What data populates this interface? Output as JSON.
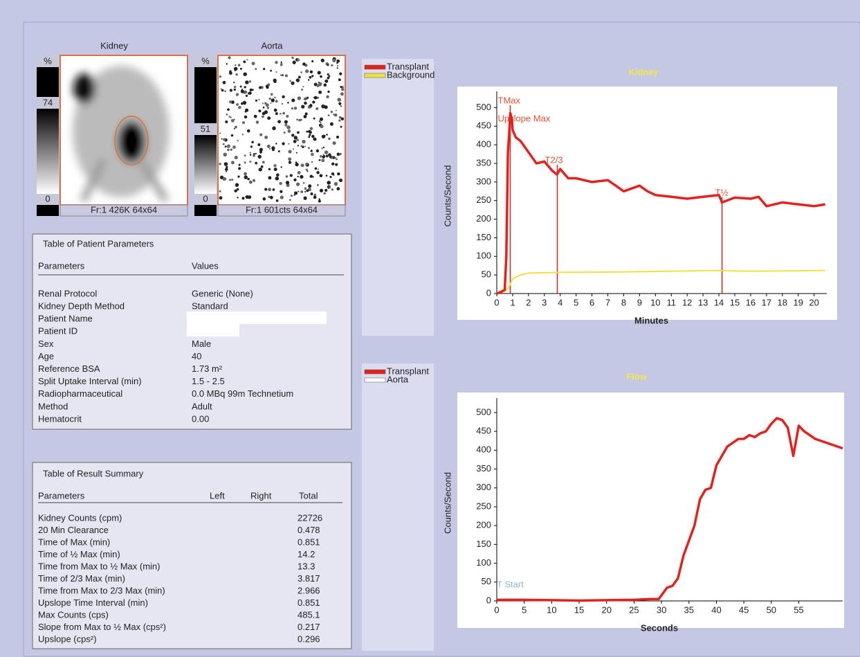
{
  "images": [
    {
      "title": "Kidney",
      "scale_top": "%",
      "scale_high": "74",
      "scale_low": "0",
      "footer": "Fr:1 426K 64x64"
    },
    {
      "title": "Aorta",
      "scale_top": "%",
      "scale_high": "51",
      "scale_low": "0",
      "footer": "Fr:1 601cts 64x64"
    }
  ],
  "patient_table": {
    "title": "Table of Patient Parameters",
    "headers": [
      "Parameters",
      "Values"
    ],
    "rows": [
      [
        "Renal Protocol",
        "Generic (None)"
      ],
      [
        "Kidney Depth Method",
        "Standard"
      ],
      [
        "Patient Name"
      ],
      [
        "Patient ID"
      ],
      [
        "Sex",
        "Male"
      ],
      [
        "Age",
        "40"
      ],
      [
        "Reference BSA",
        "1.73 m²"
      ],
      [
        "Split Uptake Interval (min)",
        "1.5 - 2.5"
      ],
      [
        "Radiopharmaceutical",
        "0.0 MBq 99m Technetium"
      ],
      [
        "Method",
        "Adult"
      ],
      [
        "Hematocrit",
        "0.00"
      ]
    ]
  },
  "result_table": {
    "title": "Table of Result Summary",
    "headers": [
      "Parameters",
      "Left",
      "Right",
      "Total"
    ],
    "rows": [
      [
        "Kidney Counts (cpm)",
        "22726"
      ],
      [
        "20 Min Clearance",
        "0.478"
      ],
      [
        "Time of Max (min)",
        "0.851"
      ],
      [
        "Time of ½ Max (min)",
        "14.2"
      ],
      [
        "Time from Max to ½ Max (min)",
        "13.3"
      ],
      [
        "Time of 2/3 Max (min)",
        "3.817"
      ],
      [
        "Time from Max to 2/3 Max (min)",
        "2.966"
      ],
      [
        "Upslope Time Interval (min)",
        "0.851"
      ],
      [
        "Max Counts (cps)",
        "485.1"
      ],
      [
        "Slope from Max to ½ Max (cps²)",
        "0.217"
      ],
      [
        "Upslope (cps²)",
        "0.296"
      ]
    ]
  },
  "chart_data": [
    {
      "type": "line",
      "title": "Kidney",
      "x_label": "Minutes",
      "y_label": "Counts/Second",
      "xlim": [
        0,
        20.8
      ],
      "ylim": [
        0,
        525
      ],
      "xticks": [
        0,
        1,
        2,
        3,
        4,
        5,
        6,
        7,
        8,
        9,
        10,
        11,
        12,
        13,
        14,
        15,
        16,
        17,
        18,
        19,
        20
      ],
      "yticks": [
        0,
        50,
        100,
        150,
        200,
        250,
        300,
        350,
        400,
        450,
        500
      ],
      "series": [
        {
          "name": "Transplant",
          "color": "#e8201c",
          "x": [
            0,
            0.3,
            0.5,
            0.6,
            0.7,
            0.8,
            0.85,
            0.95,
            1.0,
            1.2,
            1.5,
            2,
            2.5,
            3,
            3.5,
            3.8,
            4,
            4.5,
            5,
            6,
            7,
            7.5,
            8,
            9,
            9.5,
            10,
            11,
            12,
            13,
            14,
            14.2,
            15,
            16,
            16.5,
            17,
            18,
            19,
            20,
            20.7
          ],
          "values": [
            0,
            5,
            10,
            100,
            380,
            440,
            485,
            470,
            440,
            420,
            410,
            380,
            350,
            355,
            330,
            320,
            335,
            310,
            310,
            300,
            305,
            290,
            275,
            290,
            275,
            265,
            260,
            255,
            260,
            265,
            245,
            258,
            255,
            260,
            235,
            245,
            240,
            235,
            240
          ]
        },
        {
          "name": "Background",
          "color": "#f0e040",
          "x": [
            0,
            0.5,
            0.8,
            1,
            1.5,
            2,
            4,
            8,
            14,
            16,
            20.7
          ],
          "values": [
            0,
            5,
            20,
            40,
            50,
            55,
            57,
            58,
            62,
            60,
            62
          ]
        }
      ],
      "annotations": [
        {
          "text": "TMax",
          "x": 0.851
        },
        {
          "text": "Upslope Max",
          "x": 0.851
        },
        {
          "text": "T2/3",
          "x": 3.817
        },
        {
          "text": "T½",
          "x": 14.2
        }
      ]
    },
    {
      "type": "line",
      "title": "Flow",
      "x_label": "Seconds",
      "y_label": "Counts/Second",
      "xlim": [
        0,
        63
      ],
      "ylim": [
        0,
        520
      ],
      "xticks": [
        0,
        5,
        10,
        15,
        20,
        25,
        30,
        35,
        40,
        45,
        50,
        55
      ],
      "yticks": [
        0,
        50,
        100,
        150,
        200,
        250,
        300,
        350,
        400,
        450,
        500
      ],
      "series": [
        {
          "name": "Transplant",
          "color": "#e8201c",
          "x": [
            0,
            5,
            10,
            15,
            20,
            25,
            28,
            29.5,
            30,
            31,
            32,
            33,
            34,
            35,
            36,
            37,
            38,
            39,
            40,
            41,
            42,
            43,
            44,
            45,
            46,
            47,
            48,
            49,
            50,
            51,
            52,
            53,
            54,
            55,
            56,
            58,
            61,
            63
          ],
          "values": [
            3,
            3,
            2,
            1,
            2,
            3,
            5,
            5,
            15,
            35,
            40,
            60,
            120,
            160,
            200,
            270,
            295,
            300,
            360,
            385,
            410,
            420,
            430,
            430,
            440,
            435,
            445,
            450,
            470,
            485,
            480,
            460,
            385,
            465,
            450,
            430,
            415,
            405
          ]
        }
      ],
      "extra_legend": [
        {
          "name": "Aorta",
          "color": "#ffffff"
        }
      ],
      "annotations": [
        {
          "text": "T Start"
        }
      ]
    }
  ]
}
